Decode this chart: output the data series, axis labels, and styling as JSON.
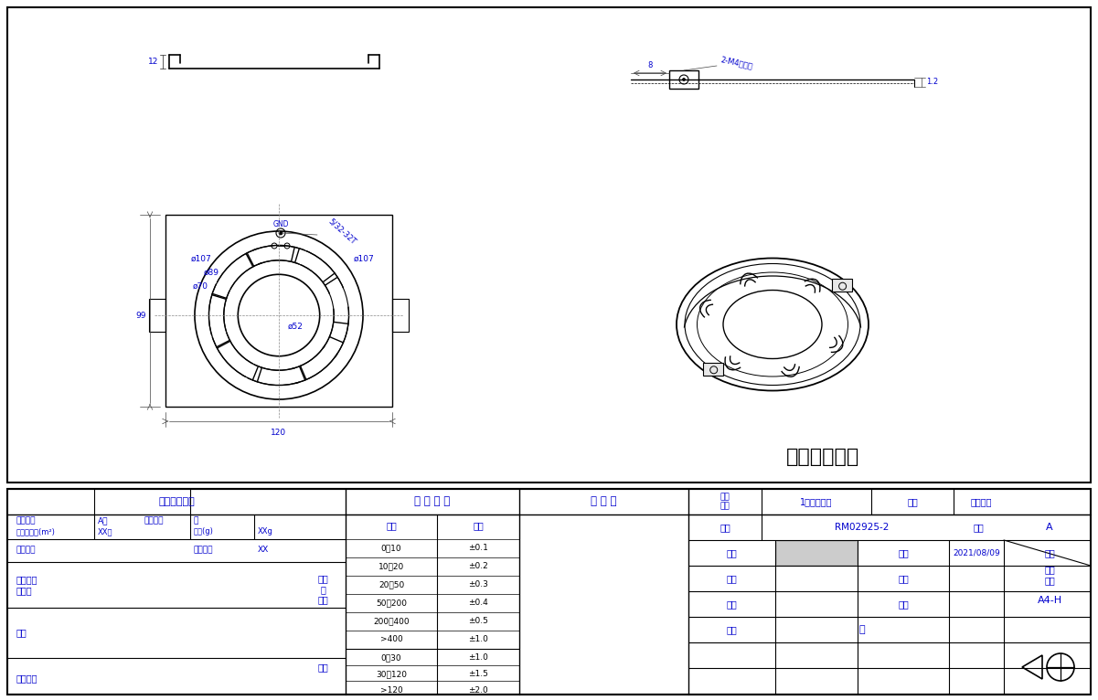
{
  "bg_color": "#ffffff",
  "line_color": "#000000",
  "blue_color": "#0000cd",
  "title_text": "镀白锌或蓝锌",
  "part_info_title": "零件相关信息",
  "default_tolerance_title": "默 认 公 差",
  "approval_title": "发 行 章",
  "version_label": "版本说明",
  "version_val": "A版",
  "change_label": "变更内容",
  "change_val": "无",
  "ref_area_label": "参考表面积(m²)",
  "ref_area_val": "XX㎡",
  "net_weight_label": "净重(g)",
  "net_weight_val": "XXg",
  "quote_num_label": "报价编号",
  "mold_num_label": "模具编号",
  "mold_num_val": "XX",
  "surface_label": "表面处理\n和要求",
  "process_label": "工艺",
  "mold_req_label": "模具要求",
  "fivemetal_plastic_label": "五金\n与\n塑胶",
  "other_label": "其它",
  "size_label": "尺寸",
  "tolerance_label": "公差",
  "rows_fivemetal": [
    [
      "0～10",
      "±0.1"
    ],
    [
      "10～20",
      "±0.2"
    ],
    [
      "20～50",
      "±0.3"
    ],
    [
      "50～200",
      "±0.4"
    ],
    [
      "200～400",
      "±0.5"
    ],
    [
      ">400",
      "±1.0"
    ]
  ],
  "rows_other": [
    [
      "0～30",
      "±1.0"
    ],
    [
      "30～120",
      "±1.5"
    ],
    [
      ">120",
      "±2.0"
    ]
  ],
  "lamp_type_label": "灯种\n代号",
  "lamp_type_val": "1米圆梱吸灯",
  "name_label": "名称",
  "name_val": "美规桥架",
  "drawing_num_label": "图号",
  "drawing_num_val": "RM02925-2",
  "version2_label": "版次",
  "version2_val": "A",
  "design_label": "设计",
  "date_label": "日期",
  "design_date_val": "2021/08/09",
  "ratio_label": "比例",
  "review_label": "审核",
  "drawing_size_label": "图纸\n尺寸",
  "drawing_size_val": "A4-H",
  "approve_label": "批准",
  "material_label": "材料",
  "material_val": "铁",
  "gnd_label": "GND",
  "dim_107_left": "ø107",
  "dim_89": "ø89",
  "dim_70": "ø70",
  "dim_52": "ø52",
  "dim_107_right": "ø107",
  "dim_99": "99",
  "dim_120": "120",
  "dim_12": "12",
  "dim_8": "8",
  "dim_12b": "1.2",
  "annot_532": "5/32-32T",
  "annot_m4": "2-M4挂件孔"
}
